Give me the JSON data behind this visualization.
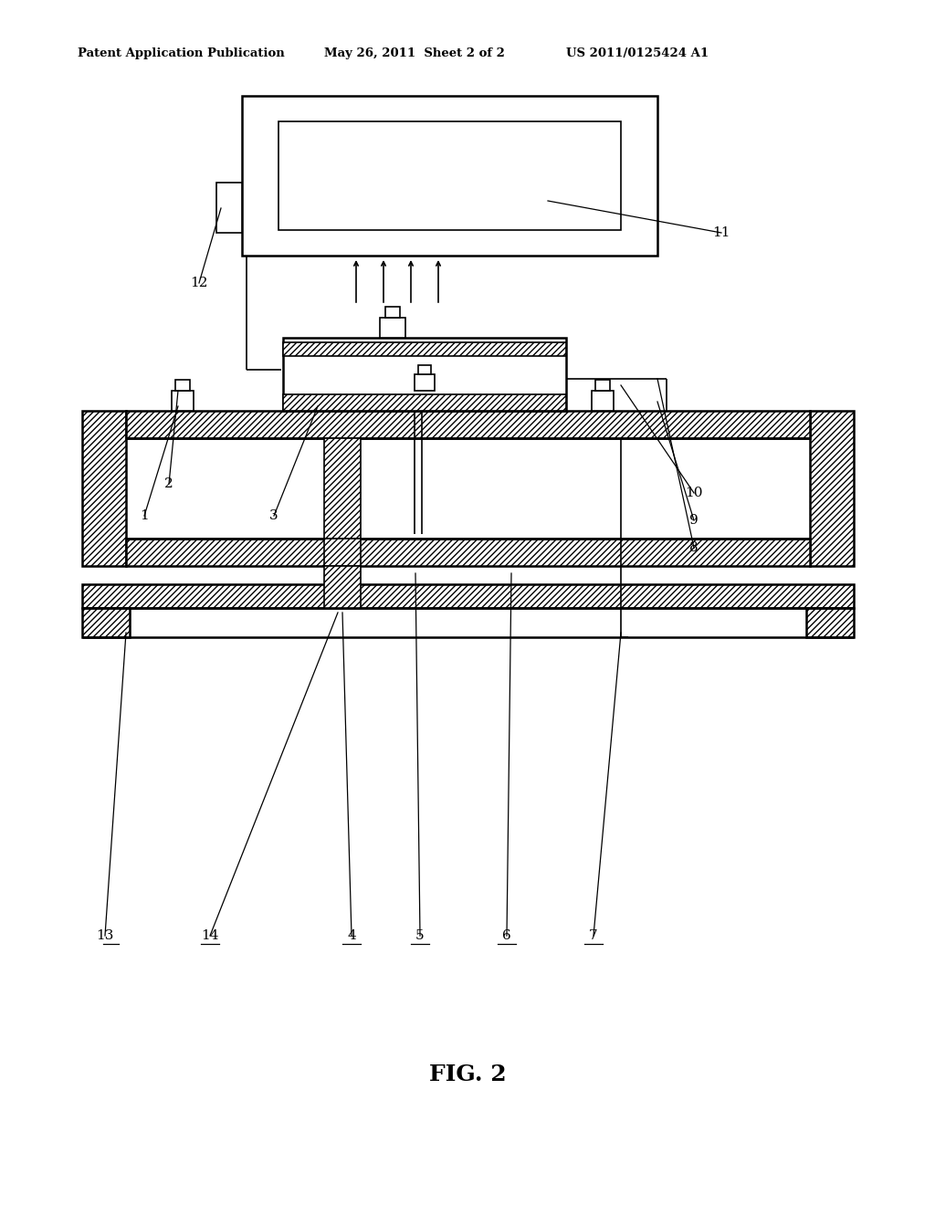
{
  "bg_color": "#ffffff",
  "line_color": "#000000",
  "header_left": "Patent Application Publication",
  "header_mid": "May 26, 2011  Sheet 2 of 2",
  "header_right": "US 2011/0125424 A1",
  "fig_label": "FIG. 2"
}
